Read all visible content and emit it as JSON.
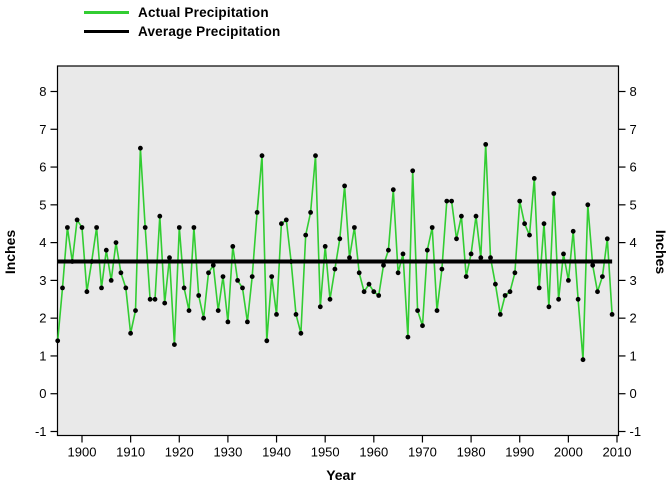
{
  "legend": {
    "items": [
      {
        "label": "Actual Precipitation",
        "color": "#32CD32"
      },
      {
        "label": "Average Precipitation",
        "color": "#000000"
      }
    ]
  },
  "axes": {
    "y_left_label": "Inches",
    "y_right_label": "Inches",
    "x_label": "Year"
  },
  "colors": {
    "plot_background": "#e9e9e9",
    "plot_border": "#000000",
    "actual_line": "#32CD32",
    "average_line": "#000000",
    "marker": "#000000"
  },
  "chart_data": {
    "type": "line",
    "title": "",
    "xlabel": "Year",
    "ylabel": "Inches",
    "xlim": [
      1895,
      2010
    ],
    "ylim": [
      -1,
      8
    ],
    "xticks": [
      1900,
      1910,
      1920,
      1930,
      1940,
      1950,
      1960,
      1970,
      1980,
      1990,
      2000,
      2010
    ],
    "yticks": [
      -1,
      0,
      1,
      2,
      3,
      4,
      5,
      6,
      7,
      8
    ],
    "grid": false,
    "legend_position": "top-left",
    "x": [
      1895,
      1896,
      1897,
      1898,
      1899,
      1900,
      1901,
      1902,
      1903,
      1904,
      1905,
      1906,
      1907,
      1908,
      1909,
      1910,
      1911,
      1912,
      1913,
      1914,
      1915,
      1916,
      1917,
      1918,
      1919,
      1920,
      1921,
      1922,
      1923,
      1924,
      1925,
      1926,
      1927,
      1928,
      1929,
      1930,
      1931,
      1932,
      1933,
      1934,
      1935,
      1936,
      1937,
      1938,
      1939,
      1940,
      1941,
      1942,
      1943,
      1944,
      1945,
      1946,
      1947,
      1948,
      1949,
      1950,
      1951,
      1952,
      1953,
      1954,
      1955,
      1956,
      1957,
      1958,
      1959,
      1960,
      1961,
      1962,
      1963,
      1964,
      1965,
      1966,
      1967,
      1968,
      1969,
      1970,
      1971,
      1972,
      1973,
      1974,
      1975,
      1976,
      1977,
      1978,
      1979,
      1980,
      1981,
      1982,
      1983,
      1984,
      1985,
      1986,
      1987,
      1988,
      1989,
      1990,
      1991,
      1992,
      1993,
      1994,
      1995,
      1996,
      1997,
      1998,
      1999,
      2000,
      2001,
      2002,
      2003,
      2004,
      2005,
      2006,
      2007,
      2008,
      2009
    ],
    "series": [
      {
        "name": "Actual Precipitation",
        "style": "line-with-markers",
        "color": "#32CD32",
        "values": [
          1.4,
          2.8,
          4.4,
          3.5,
          4.6,
          4.4,
          2.7,
          3.5,
          4.4,
          2.8,
          3.8,
          3.0,
          4.0,
          3.2,
          2.8,
          1.6,
          2.2,
          6.5,
          4.4,
          2.5,
          2.5,
          4.7,
          2.4,
          3.6,
          1.3,
          4.4,
          2.8,
          2.2,
          4.4,
          2.6,
          2.0,
          3.2,
          3.4,
          2.2,
          3.1,
          1.9,
          3.9,
          3.0,
          2.8,
          1.9,
          3.1,
          4.8,
          6.3,
          1.4,
          3.1,
          2.1,
          4.5,
          4.6,
          3.5,
          2.1,
          1.6,
          4.2,
          4.8,
          6.3,
          2.3,
          3.9,
          2.5,
          3.3,
          4.1,
          5.5,
          3.6,
          4.4,
          3.2,
          2.7,
          2.9,
          2.7,
          2.6,
          3.4,
          3.8,
          5.4,
          3.2,
          3.7,
          1.5,
          5.9,
          2.2,
          1.8,
          3.8,
          4.4,
          2.2,
          3.3,
          5.1,
          5.1,
          4.1,
          4.7,
          3.1,
          3.7,
          4.7,
          3.6,
          6.6,
          3.6,
          2.9,
          2.1,
          2.6,
          2.7,
          3.2,
          5.1,
          4.5,
          4.2,
          5.7,
          2.8,
          4.5,
          2.3,
          5.3,
          2.5,
          3.7,
          3.0,
          4.3,
          2.5,
          0.9,
          5.0,
          3.4,
          2.7,
          3.1,
          4.1,
          2.1
        ]
      },
      {
        "name": "Average Precipitation",
        "style": "horizontal-line",
        "color": "#000000",
        "value": 3.5
      }
    ]
  }
}
